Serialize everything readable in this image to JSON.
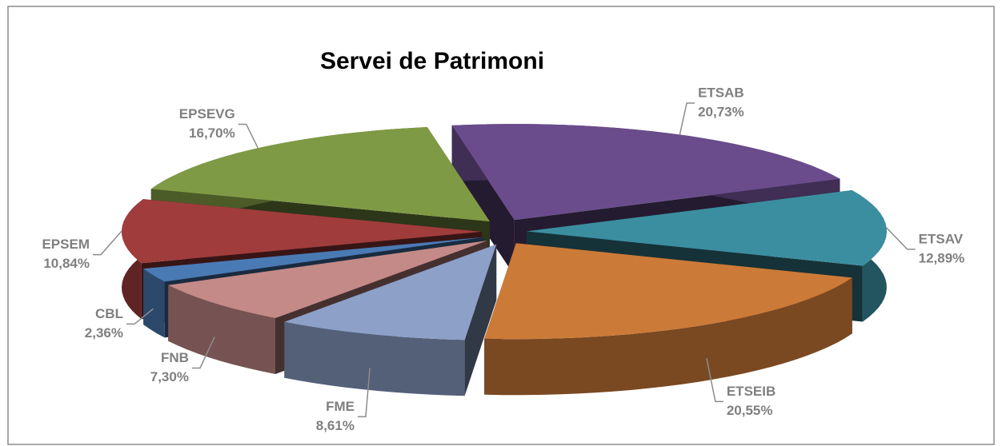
{
  "chart_data": {
    "type": "pie",
    "title": "Servei de Patrimoni",
    "categories": [
      "ETSAB",
      "ETSAV",
      "ETSEIB",
      "FME",
      "FNB",
      "CBL",
      "EPSEM",
      "EPSEVG"
    ],
    "values": [
      20.73,
      12.89,
      20.55,
      8.61,
      7.3,
      2.36,
      10.84,
      16.7
    ],
    "value_labels": [
      "20,73%",
      "12,89%",
      "20,55%",
      "8,61%",
      "7,30%",
      "2,36%",
      "10,84%",
      "16,70%"
    ],
    "colors": [
      "#6a4c8c",
      "#3b8ea0",
      "#cc7a38",
      "#8ca0c8",
      "#c48a88",
      "#4a7ab4",
      "#a03c3c",
      "#7f9a44"
    ]
  }
}
